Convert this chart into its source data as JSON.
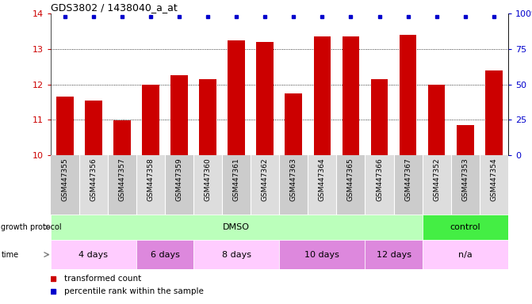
{
  "title": "GDS3802 / 1438040_a_at",
  "samples": [
    "GSM447355",
    "GSM447356",
    "GSM447357",
    "GSM447358",
    "GSM447359",
    "GSM447360",
    "GSM447361",
    "GSM447362",
    "GSM447363",
    "GSM447364",
    "GSM447365",
    "GSM447366",
    "GSM447367",
    "GSM447352",
    "GSM447353",
    "GSM447354"
  ],
  "bar_values": [
    11.65,
    11.55,
    10.98,
    12.0,
    12.25,
    12.15,
    13.25,
    13.2,
    11.75,
    13.35,
    13.35,
    12.15,
    13.4,
    12.0,
    10.85,
    12.4
  ],
  "percentile_values": [
    98,
    98,
    98,
    98,
    98,
    98,
    98,
    98,
    98,
    98,
    98,
    98,
    98,
    98,
    98,
    98
  ],
  "bar_color": "#cc0000",
  "percentile_color": "#0000cc",
  "ylim_left": [
    10,
    14
  ],
  "ylim_right": [
    0,
    100
  ],
  "yticks_left": [
    10,
    11,
    12,
    13,
    14
  ],
  "yticks_right": [
    0,
    25,
    50,
    75,
    100
  ],
  "ytick_labels_right": [
    "0",
    "25",
    "50",
    "75",
    "100%"
  ],
  "grid_lines": [
    11,
    12,
    13
  ],
  "groups": [
    {
      "label": "DMSO",
      "start": 0,
      "end": 13,
      "color": "#bbffbb"
    },
    {
      "label": "control",
      "start": 13,
      "end": 16,
      "color": "#44ee44"
    }
  ],
  "time_groups": [
    {
      "label": "4 days",
      "start": 0,
      "end": 3,
      "color": "#ffccff"
    },
    {
      "label": "6 days",
      "start": 3,
      "end": 5,
      "color": "#dd88dd"
    },
    {
      "label": "8 days",
      "start": 5,
      "end": 8,
      "color": "#ffccff"
    },
    {
      "label": "10 days",
      "start": 8,
      "end": 11,
      "color": "#dd88dd"
    },
    {
      "label": "12 days",
      "start": 11,
      "end": 13,
      "color": "#dd88dd"
    },
    {
      "label": "n/a",
      "start": 13,
      "end": 16,
      "color": "#ffccff"
    }
  ],
  "legend_items": [
    {
      "label": "transformed count",
      "color": "#cc0000"
    },
    {
      "label": "percentile rank within the sample",
      "color": "#0000cc"
    }
  ],
  "background_color": "#ffffff",
  "axis_label_color_left": "#cc0000",
  "axis_label_color_right": "#0000cc",
  "xtick_bg_color": "#cccccc",
  "xtick_alt_color": "#dddddd"
}
